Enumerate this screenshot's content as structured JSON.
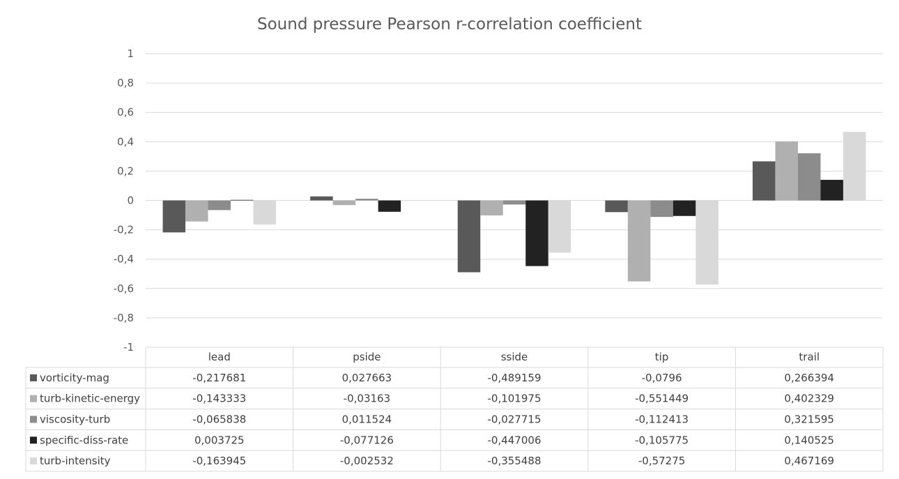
{
  "chart_data": {
    "type": "bar",
    "title": "Sound pressure Pearson r-correlation coefficient",
    "xlabel": "",
    "ylabel": "",
    "ylim": [
      -1,
      1
    ],
    "yticks": [
      "1",
      "0,8",
      "0,6",
      "0,4",
      "0,2",
      "0",
      "-0,2",
      "-0,4",
      "-0,6",
      "-0,8",
      "-1"
    ],
    "grid": true,
    "legend": "data-table",
    "categories": [
      "lead",
      "pside",
      "sside",
      "tip",
      "trail"
    ],
    "series": [
      {
        "name": "vorticity-mag",
        "color": "#595959",
        "values": [
          -0.217681,
          0.027663,
          -0.489159,
          -0.0796,
          0.266394
        ],
        "labels": [
          "-0,217681",
          "0,027663",
          "-0,489159",
          "-0,0796",
          "0,266394"
        ]
      },
      {
        "name": "turb-kinetic-energy",
        "color": "#b0b0b0",
        "values": [
          -0.143333,
          -0.03163,
          -0.101975,
          -0.551449,
          0.402329
        ],
        "labels": [
          "-0,143333",
          "-0,03163",
          "-0,101975",
          "-0,551449",
          "0,402329"
        ]
      },
      {
        "name": "viscosity-turb",
        "color": "#8c8c8c",
        "values": [
          -0.065838,
          0.011524,
          -0.027715,
          -0.112413,
          0.321595
        ],
        "labels": [
          "-0,065838",
          "0,011524",
          "-0,027715",
          "-0,112413",
          "0,321595"
        ]
      },
      {
        "name": "specific-diss-rate",
        "color": "#222222",
        "values": [
          0.003725,
          -0.077126,
          -0.447006,
          -0.105775,
          0.140525
        ],
        "labels": [
          "0,003725",
          "-0,077126",
          "-0,447006",
          "-0,105775",
          "0,140525"
        ]
      },
      {
        "name": "turb-intensity",
        "color": "#d9d9d9",
        "values": [
          -0.163945,
          -0.002532,
          -0.355488,
          -0.57275,
          0.467169
        ],
        "labels": [
          "-0,163945",
          "-0,002532",
          "-0,355488",
          "-0,57275",
          "0,467169"
        ]
      }
    ]
  }
}
